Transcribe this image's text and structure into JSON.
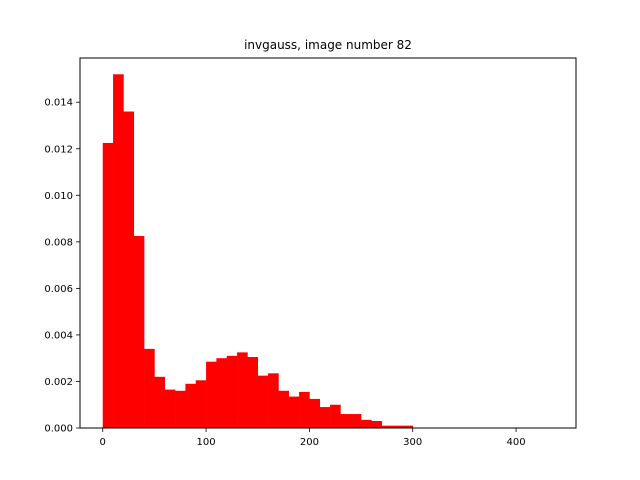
{
  "chart_data": {
    "type": "bar",
    "title": "invgauss, image number 82",
    "xlabel": "",
    "ylabel": "",
    "xlim": [
      -22,
      458
    ],
    "ylim": [
      0,
      0.0159
    ],
    "color": "#ff0000",
    "bin_width": 10.0,
    "bins": [
      {
        "x0": 0.0,
        "value": 0.01225
      },
      {
        "x0": 10.0,
        "value": 0.0152
      },
      {
        "x0": 20.0,
        "value": 0.0136
      },
      {
        "x0": 30.0,
        "value": 0.00825
      },
      {
        "x0": 40.0,
        "value": 0.0034
      },
      {
        "x0": 50.0,
        "value": 0.0022
      },
      {
        "x0": 60.0,
        "value": 0.00165
      },
      {
        "x0": 70.0,
        "value": 0.0016
      },
      {
        "x0": 80.0,
        "value": 0.0019
      },
      {
        "x0": 90.0,
        "value": 0.00205
      },
      {
        "x0": 100.0,
        "value": 0.00285
      },
      {
        "x0": 110.0,
        "value": 0.003
      },
      {
        "x0": 120.0,
        "value": 0.0031
      },
      {
        "x0": 130.0,
        "value": 0.00325
      },
      {
        "x0": 140.0,
        "value": 0.00305
      },
      {
        "x0": 150.0,
        "value": 0.00225
      },
      {
        "x0": 160.0,
        "value": 0.00235
      },
      {
        "x0": 170.0,
        "value": 0.0016
      },
      {
        "x0": 180.0,
        "value": 0.00135
      },
      {
        "x0": 190.0,
        "value": 0.00155
      },
      {
        "x0": 200.0,
        "value": 0.00125
      },
      {
        "x0": 210.0,
        "value": 0.0009
      },
      {
        "x0": 220.0,
        "value": 0.001
      },
      {
        "x0": 230.0,
        "value": 0.0006
      },
      {
        "x0": 240.0,
        "value": 0.0006
      },
      {
        "x0": 250.0,
        "value": 0.00035
      },
      {
        "x0": 260.0,
        "value": 0.0003
      },
      {
        "x0": 270.0,
        "value": 0.0001
      },
      {
        "x0": 280.0,
        "value": 0.0001
      },
      {
        "x0": 290.0,
        "value": 0.0001
      },
      {
        "x0": 300.0,
        "value": 2e-05
      },
      {
        "x0": 310.0,
        "value": 1e-05
      },
      {
        "x0": 320.0,
        "value": 1e-05
      },
      {
        "x0": 330.0,
        "value": 1e-05
      },
      {
        "x0": 340.0,
        "value": 0.0
      },
      {
        "x0": 350.0,
        "value": 0.0
      },
      {
        "x0": 360.0,
        "value": 0.0
      },
      {
        "x0": 370.0,
        "value": 0.0
      },
      {
        "x0": 380.0,
        "value": 0.0
      },
      {
        "x0": 390.0,
        "value": 0.0
      },
      {
        "x0": 400.0,
        "value": 0.0
      },
      {
        "x0": 410.0,
        "value": 0.0
      },
      {
        "x0": 420.0,
        "value": 1e-05
      },
      {
        "x0": 430.0,
        "value": 1e-05
      }
    ],
    "xticks": [
      {
        "value": 0,
        "label": "0"
      },
      {
        "value": 100,
        "label": "100"
      },
      {
        "value": 200,
        "label": "200"
      },
      {
        "value": 300,
        "label": "300"
      },
      {
        "value": 400,
        "label": "400"
      }
    ],
    "yticks": [
      {
        "value": 0.0,
        "label": "0.000"
      },
      {
        "value": 0.002,
        "label": "0.002"
      },
      {
        "value": 0.004,
        "label": "0.004"
      },
      {
        "value": 0.006,
        "label": "0.006"
      },
      {
        "value": 0.008,
        "label": "0.008"
      },
      {
        "value": 0.01,
        "label": "0.010"
      },
      {
        "value": 0.012,
        "label": "0.012"
      },
      {
        "value": 0.014,
        "label": "0.014"
      }
    ],
    "grid": false,
    "legend": "none"
  }
}
